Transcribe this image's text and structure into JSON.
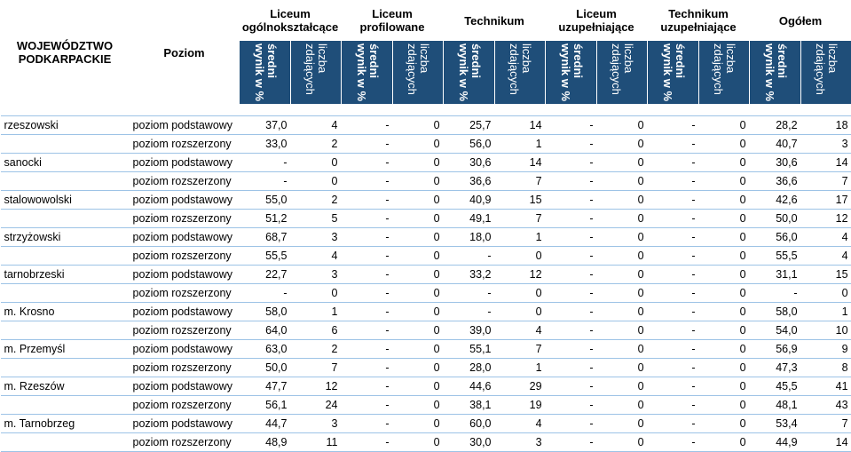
{
  "header": {
    "region": [
      "WOJEWÓDZTWO",
      "PODKARPACKIE"
    ],
    "level": "Poziom",
    "groups": [
      [
        "Liceum",
        "ogólnokształcące"
      ],
      [
        "Liceum",
        "profilowane"
      ],
      [
        "Technikum",
        ""
      ],
      [
        "Liceum",
        "uzupełniające"
      ],
      [
        "Technikum",
        "uzupełniające"
      ],
      [
        "Ogółem",
        ""
      ]
    ],
    "sub_avg": "średni wynik w %",
    "sub_count": "liczba zdających"
  },
  "rows": [
    {
      "region": "rzeszowski",
      "level": "poziom podstawowy",
      "v": [
        "37,0",
        "4",
        "-",
        "0",
        "25,7",
        "14",
        "-",
        "0",
        "-",
        "0",
        "28,2",
        "18"
      ]
    },
    {
      "region": "",
      "level": "poziom rozszerzony",
      "v": [
        "33,0",
        "2",
        "-",
        "0",
        "56,0",
        "1",
        "-",
        "0",
        "-",
        "0",
        "40,7",
        "3"
      ]
    },
    {
      "region": "sanocki",
      "level": "poziom podstawowy",
      "v": [
        "-",
        "0",
        "-",
        "0",
        "30,6",
        "14",
        "-",
        "0",
        "-",
        "0",
        "30,6",
        "14"
      ]
    },
    {
      "region": "",
      "level": "poziom rozszerzony",
      "v": [
        "-",
        "0",
        "-",
        "0",
        "36,6",
        "7",
        "-",
        "0",
        "-",
        "0",
        "36,6",
        "7"
      ]
    },
    {
      "region": "stalowowolski",
      "level": "poziom podstawowy",
      "v": [
        "55,0",
        "2",
        "-",
        "0",
        "40,9",
        "15",
        "-",
        "0",
        "-",
        "0",
        "42,6",
        "17"
      ]
    },
    {
      "region": "",
      "level": "poziom rozszerzony",
      "v": [
        "51,2",
        "5",
        "-",
        "0",
        "49,1",
        "7",
        "-",
        "0",
        "-",
        "0",
        "50,0",
        "12"
      ]
    },
    {
      "region": "strzyżowski",
      "level": "poziom podstawowy",
      "v": [
        "68,7",
        "3",
        "-",
        "0",
        "18,0",
        "1",
        "-",
        "0",
        "-",
        "0",
        "56,0",
        "4"
      ]
    },
    {
      "region": "",
      "level": "poziom rozszerzony",
      "v": [
        "55,5",
        "4",
        "-",
        "0",
        "-",
        "0",
        "-",
        "0",
        "-",
        "0",
        "55,5",
        "4"
      ]
    },
    {
      "region": "tarnobrzeski",
      "level": "poziom podstawowy",
      "v": [
        "22,7",
        "3",
        "-",
        "0",
        "33,2",
        "12",
        "-",
        "0",
        "-",
        "0",
        "31,1",
        "15"
      ]
    },
    {
      "region": "",
      "level": "poziom rozszerzony",
      "v": [
        "-",
        "0",
        "-",
        "0",
        "-",
        "0",
        "-",
        "0",
        "-",
        "0",
        "-",
        "0"
      ]
    },
    {
      "region": "m. Krosno",
      "level": "poziom podstawowy",
      "v": [
        "58,0",
        "1",
        "-",
        "0",
        "-",
        "0",
        "-",
        "0",
        "-",
        "0",
        "58,0",
        "1"
      ]
    },
    {
      "region": "",
      "level": "poziom rozszerzony",
      "v": [
        "64,0",
        "6",
        "-",
        "0",
        "39,0",
        "4",
        "-",
        "0",
        "-",
        "0",
        "54,0",
        "10"
      ]
    },
    {
      "region": "m. Przemyśl",
      "level": "poziom podstawowy",
      "v": [
        "63,0",
        "2",
        "-",
        "0",
        "55,1",
        "7",
        "-",
        "0",
        "-",
        "0",
        "56,9",
        "9"
      ]
    },
    {
      "region": "",
      "level": "poziom rozszerzony",
      "v": [
        "50,0",
        "7",
        "-",
        "0",
        "28,0",
        "1",
        "-",
        "0",
        "-",
        "0",
        "47,3",
        "8"
      ]
    },
    {
      "region": "m. Rzeszów",
      "level": "poziom podstawowy",
      "v": [
        "47,7",
        "12",
        "-",
        "0",
        "44,6",
        "29",
        "-",
        "0",
        "-",
        "0",
        "45,5",
        "41"
      ]
    },
    {
      "region": "",
      "level": "poziom rozszerzony",
      "v": [
        "56,1",
        "24",
        "-",
        "0",
        "38,1",
        "19",
        "-",
        "0",
        "-",
        "0",
        "48,1",
        "43"
      ]
    },
    {
      "region": "m. Tarnobrzeg",
      "level": "poziom podstawowy",
      "v": [
        "44,7",
        "3",
        "-",
        "0",
        "60,0",
        "4",
        "-",
        "0",
        "-",
        "0",
        "53,4",
        "7"
      ]
    },
    {
      "region": "",
      "level": "poziom rozszerzony",
      "v": [
        "48,9",
        "11",
        "-",
        "0",
        "30,0",
        "3",
        "-",
        "0",
        "-",
        "0",
        "44,9",
        "14"
      ]
    }
  ]
}
